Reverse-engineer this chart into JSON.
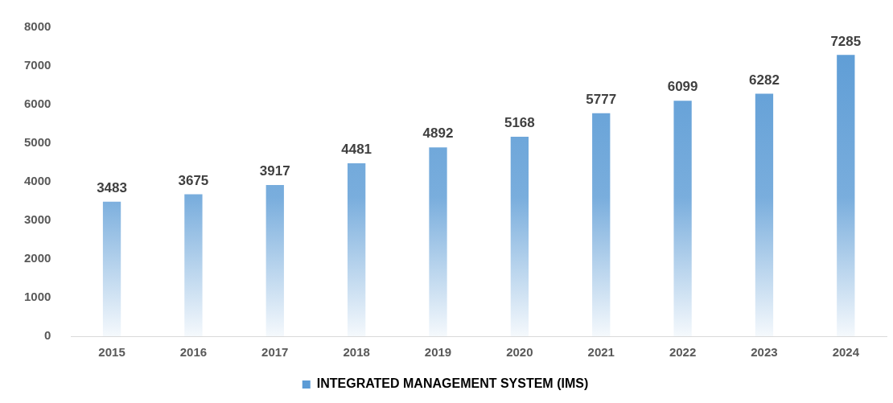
{
  "chart_data": {
    "type": "bar",
    "categories": [
      "2015",
      "2016",
      "2017",
      "2018",
      "2019",
      "2020",
      "2021",
      "2022",
      "2023",
      "2024"
    ],
    "series": [
      {
        "name": "INTEGRATED MANAGEMENT SYSTEM (IMS)",
        "color": "#5b9bd5",
        "values": [
          3483,
          3675,
          3917,
          4481,
          4892,
          5168,
          5777,
          6099,
          6282,
          7285
        ]
      }
    ],
    "ylim": [
      0,
      8000
    ],
    "yticks": [
      0,
      1000,
      2000,
      3000,
      4000,
      5000,
      6000,
      7000,
      8000
    ],
    "grid": false,
    "legend": "bottom",
    "data_labels": true
  }
}
